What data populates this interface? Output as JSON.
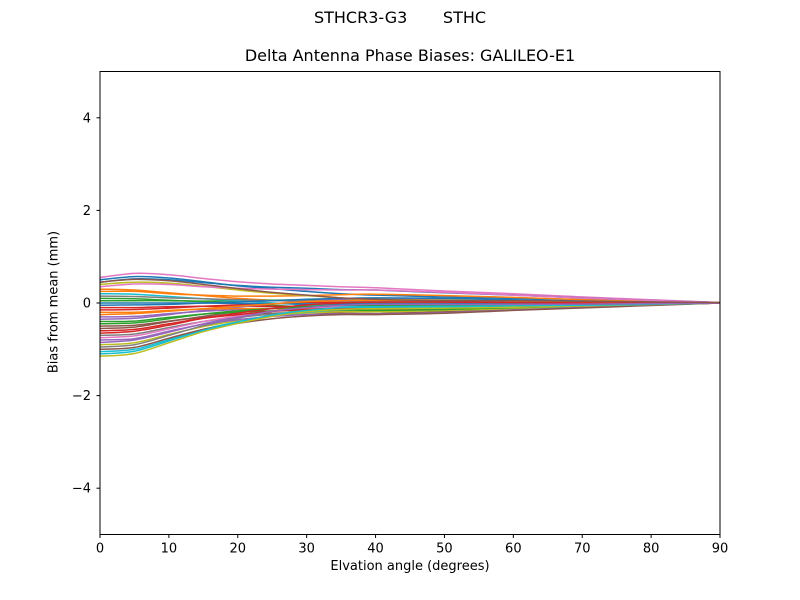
{
  "chart_data": {
    "type": "line",
    "suptitle": "STHCR3-G3       STHC",
    "title": "Delta Antenna Phase Biases: GALILEO-E1",
    "xlabel": "Elvation angle (degrees)",
    "ylabel": "Bias from mean (mm)",
    "xlim": [
      0,
      90
    ],
    "ylim": [
      -5,
      5
    ],
    "xticks": [
      0,
      10,
      20,
      30,
      40,
      50,
      60,
      70,
      80,
      90
    ],
    "yticks": [
      4,
      2,
      0,
      -2,
      -4
    ],
    "grid": false,
    "legend": "none",
    "frame_color": "#000000",
    "background": "#ffffff",
    "palette": [
      "#1f77b4",
      "#ff7f0e",
      "#2ca02c",
      "#d62728",
      "#9467bd",
      "#8c564b",
      "#e377c2",
      "#7f7f7f",
      "#bcbd22",
      "#17becf"
    ],
    "x": [
      0,
      5,
      10,
      15,
      20,
      25,
      30,
      35,
      40,
      50,
      60,
      75,
      90
    ],
    "series": [
      {
        "y": [
          0.5,
          0.57,
          0.54,
          0.46,
          0.37,
          0.31,
          0.25,
          0.2,
          0.17,
          0.13,
          0.1,
          0.06,
          0.01
        ]
      },
      {
        "y": [
          0.3,
          0.28,
          0.22,
          0.16,
          0.1,
          0.06,
          0.02,
          0.0,
          -0.01,
          0.0,
          0.0,
          0.0,
          0.0
        ]
      },
      {
        "y": [
          0.1,
          0.09,
          0.06,
          0.03,
          -0.01,
          -0.05,
          -0.09,
          -0.12,
          -0.14,
          -0.11,
          -0.08,
          -0.03,
          0.0
        ]
      },
      {
        "y": [
          -0.1,
          -0.1,
          -0.08,
          -0.07,
          -0.07,
          -0.07,
          -0.08,
          -0.09,
          -0.1,
          -0.08,
          -0.06,
          -0.03,
          0.0
        ]
      },
      {
        "y": [
          -0.3,
          -0.29,
          -0.23,
          -0.18,
          -0.14,
          -0.11,
          -0.1,
          -0.09,
          -0.1,
          -0.08,
          -0.06,
          -0.03,
          0.0
        ]
      },
      {
        "y": [
          -0.5,
          -0.48,
          -0.39,
          -0.31,
          -0.25,
          -0.22,
          -0.21,
          -0.22,
          -0.23,
          -0.19,
          -0.14,
          -0.06,
          0.0
        ]
      },
      {
        "y": [
          0.55,
          0.64,
          0.61,
          0.53,
          0.46,
          0.41,
          0.38,
          0.35,
          0.33,
          0.26,
          0.2,
          0.1,
          0.01
        ]
      },
      {
        "y": [
          -0.7,
          -0.67,
          -0.53,
          -0.4,
          -0.31,
          -0.24,
          -0.2,
          -0.18,
          -0.19,
          -0.16,
          -0.12,
          -0.06,
          0.0
        ]
      },
      {
        "y": [
          -0.9,
          -0.86,
          -0.68,
          -0.51,
          -0.38,
          -0.28,
          -0.22,
          -0.19,
          -0.19,
          -0.16,
          -0.12,
          -0.06,
          0.0
        ]
      },
      {
        "y": [
          -1.05,
          -1.0,
          -0.79,
          -0.57,
          -0.41,
          -0.28,
          -0.2,
          -0.15,
          -0.14,
          -0.12,
          -0.09,
          -0.05,
          0.0
        ]
      },
      {
        "y": [
          0.45,
          0.52,
          0.5,
          0.44,
          0.38,
          0.34,
          0.32,
          0.29,
          0.28,
          0.22,
          0.17,
          0.08,
          0.01
        ]
      },
      {
        "y": [
          0.25,
          0.25,
          0.2,
          0.17,
          0.15,
          0.15,
          0.16,
          0.18,
          0.19,
          0.16,
          0.12,
          0.05,
          0.0
        ]
      },
      {
        "y": [
          0.05,
          0.05,
          0.05,
          0.04,
          0.05,
          0.06,
          0.07,
          0.08,
          0.09,
          0.07,
          0.05,
          0.02,
          0.0
        ]
      },
      {
        "y": [
          -0.15,
          -0.14,
          -0.11,
          -0.07,
          -0.04,
          -0.01,
          0.01,
          0.02,
          0.03,
          0.02,
          0.02,
          0.01,
          0.0
        ]
      },
      {
        "y": [
          -0.35,
          -0.33,
          -0.25,
          -0.16,
          -0.09,
          -0.02,
          0.04,
          0.08,
          0.1,
          0.08,
          0.06,
          0.02,
          0.0
        ]
      },
      {
        "y": [
          -0.55,
          -0.52,
          -0.4,
          -0.29,
          -0.19,
          -0.11,
          -0.05,
          -0.02,
          0.0,
          0.0,
          -0.01,
          -0.01,
          0.0
        ]
      },
      {
        "y": [
          -0.75,
          -0.71,
          -0.56,
          -0.4,
          -0.28,
          -0.18,
          -0.11,
          -0.08,
          -0.06,
          -0.06,
          -0.05,
          -0.03,
          0.0
        ]
      },
      {
        "y": [
          -0.95,
          -0.9,
          -0.7,
          -0.49,
          -0.33,
          -0.18,
          -0.08,
          -0.02,
          0.01,
          0.0,
          -0.01,
          -0.01,
          0.0
        ]
      },
      {
        "y": [
          0.4,
          0.45,
          0.43,
          0.36,
          0.28,
          0.21,
          0.16,
          0.11,
          0.08,
          0.06,
          0.05,
          0.03,
          0.01
        ]
      },
      {
        "y": [
          0.2,
          0.19,
          0.14,
          0.09,
          0.05,
          0.0,
          -0.04,
          -0.06,
          -0.07,
          -0.06,
          -0.04,
          -0.02,
          0.0
        ]
      },
      {
        "y": [
          0.0,
          0.0,
          0.0,
          0.0,
          -0.01,
          -0.01,
          -0.02,
          -0.02,
          -0.02,
          -0.02,
          -0.01,
          -0.01,
          0.0
        ]
      },
      {
        "y": [
          -0.2,
          -0.2,
          -0.16,
          -0.13,
          -0.12,
          -0.12,
          -0.13,
          -0.14,
          -0.15,
          -0.13,
          -0.09,
          -0.04,
          0.0
        ]
      },
      {
        "y": [
          -0.4,
          -0.39,
          -0.31,
          -0.24,
          -0.2,
          -0.17,
          -0.16,
          -0.15,
          -0.16,
          -0.14,
          -0.1,
          -0.05,
          0.0
        ]
      },
      {
        "y": [
          -0.6,
          -0.57,
          -0.45,
          -0.33,
          -0.25,
          -0.18,
          -0.14,
          -0.11,
          -0.11,
          -0.1,
          -0.07,
          -0.04,
          0.0
        ]
      },
      {
        "y": [
          -0.8,
          -0.77,
          -0.61,
          -0.46,
          -0.36,
          -0.29,
          -0.25,
          -0.24,
          -0.24,
          -0.21,
          -0.15,
          -0.07,
          0.0
        ]
      },
      {
        "y": [
          -1.0,
          -0.96,
          -0.76,
          -0.57,
          -0.44,
          -0.34,
          -0.28,
          -0.25,
          -0.25,
          -0.22,
          -0.16,
          -0.08,
          0.0
        ]
      },
      {
        "y": [
          0.35,
          0.41,
          0.4,
          0.35,
          0.32,
          0.3,
          0.29,
          0.28,
          0.28,
          0.23,
          0.17,
          0.08,
          0.01
        ]
      },
      {
        "y": [
          0.15,
          0.14,
          0.11,
          0.09,
          0.07,
          0.05,
          0.05,
          0.04,
          0.04,
          0.04,
          0.03,
          0.01,
          0.0
        ]
      },
      {
        "y": [
          -1.15,
          -1.09,
          -0.86,
          -0.62,
          -0.44,
          -0.29,
          -0.19,
          -0.14,
          -0.12,
          -0.11,
          -0.09,
          -0.05,
          0.0
        ]
      },
      {
        "y": [
          -1.1,
          -1.04,
          -0.82,
          -0.59,
          -0.41,
          -0.26,
          -0.16,
          -0.1,
          -0.09,
          -0.08,
          -0.06,
          -0.04,
          0.0
        ]
      },
      {
        "y": [
          -0.05,
          -0.04,
          -0.03,
          0.0,
          0.02,
          0.05,
          0.08,
          0.1,
          0.11,
          0.1,
          0.07,
          0.03,
          0.0
        ]
      },
      {
        "y": [
          -0.25,
          -0.23,
          -0.18,
          -0.12,
          -0.07,
          -0.02,
          0.03,
          0.05,
          0.06,
          0.05,
          0.04,
          0.01,
          0.0
        ]
      },
      {
        "y": [
          -0.45,
          -0.43,
          -0.34,
          -0.24,
          -0.17,
          -0.12,
          -0.08,
          -0.05,
          -0.05,
          -0.04,
          -0.03,
          -0.02,
          0.0
        ]
      },
      {
        "y": [
          -0.65,
          -0.61,
          -0.48,
          -0.33,
          -0.22,
          -0.12,
          -0.04,
          0.0,
          0.02,
          0.02,
          0.01,
          0.0,
          0.0
        ]
      },
      {
        "y": [
          -0.85,
          -0.8,
          -0.63,
          -0.45,
          -0.31,
          -0.18,
          -0.1,
          -0.05,
          -0.03,
          -0.03,
          -0.03,
          -0.02,
          0.0
        ]
      },
      {
        "y": [
          0.45,
          0.51,
          0.48,
          0.4,
          0.31,
          0.23,
          0.17,
          0.11,
          0.08,
          0.05,
          0.05,
          0.03,
          0.01
        ]
      }
    ]
  }
}
